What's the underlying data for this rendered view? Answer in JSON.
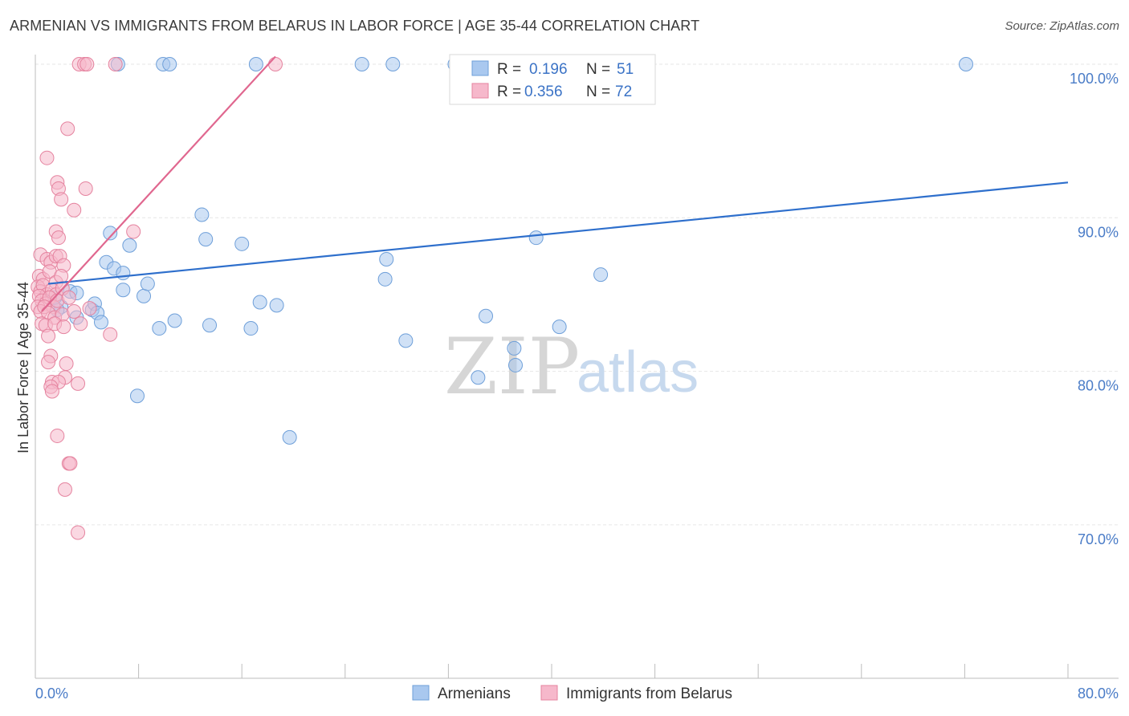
{
  "title": "ARMENIAN VS IMMIGRANTS FROM BELARUS IN LABOR FORCE | AGE 35-44 CORRELATION CHART",
  "source": "Source: ZipAtlas.com",
  "watermark": {
    "zip": "ZIP",
    "atlas": "atlas"
  },
  "chart_data": {
    "type": "scatter",
    "xlabel": "",
    "ylabel": "In Labor Force | Age 35-44",
    "xlim": [
      0,
      80
    ],
    "ylim": [
      60,
      101
    ],
    "x_tick_labels": [
      {
        "value": 0,
        "label": "0.0%"
      },
      {
        "value": 80,
        "label": "80.0%"
      }
    ],
    "y_tick_labels": [
      {
        "value": 100,
        "label": "100.0%"
      },
      {
        "value": 90,
        "label": "90.0%"
      },
      {
        "value": 80,
        "label": "80.0%"
      },
      {
        "value": 70,
        "label": "70.0%"
      }
    ],
    "y_gridlines": [
      100,
      90,
      80,
      70
    ],
    "x_minor_ticks": [
      8,
      16,
      24,
      32,
      40,
      48,
      56,
      64,
      72
    ],
    "legend": [
      {
        "name": "Armenians",
        "r_label": "R =",
        "r": "0.196",
        "n_label": "N =",
        "n": "51",
        "color": "#a9c8ef"
      },
      {
        "name": "Immigrants from Belarus",
        "r_label": "R =",
        "r": "0.356",
        "n_label": "N =",
        "n": "72",
        "color": "#f6b8cb"
      }
    ],
    "series": [
      {
        "name": "Armenians",
        "color": "#a9c8ef",
        "stroke": "#6e9fd9",
        "trend": {
          "x": [
            1.0,
            80.0
          ],
          "y": [
            85.7,
            92.3
          ],
          "color": "#2e6fcc"
        },
        "points": [
          [
            6.4,
            100
          ],
          [
            9.9,
            100
          ],
          [
            10.4,
            100
          ],
          [
            17.1,
            100
          ],
          [
            25.3,
            100
          ],
          [
            27.7,
            100
          ],
          [
            32.5,
            100
          ],
          [
            72.1,
            100
          ],
          [
            2.0,
            84.2
          ],
          [
            1.7,
            84.0
          ],
          [
            4.4,
            84.0
          ],
          [
            4.6,
            84.4
          ],
          [
            3.2,
            83.5
          ],
          [
            4.8,
            83.8
          ],
          [
            2.7,
            85.2
          ],
          [
            3.2,
            85.1
          ],
          [
            1.5,
            84.8
          ],
          [
            5.1,
            83.2
          ],
          [
            5.5,
            87.1
          ],
          [
            5.8,
            89.0
          ],
          [
            6.1,
            86.7
          ],
          [
            6.8,
            86.4
          ],
          [
            6.8,
            85.3
          ],
          [
            7.3,
            88.2
          ],
          [
            8.4,
            84.9
          ],
          [
            8.7,
            85.7
          ],
          [
            9.6,
            82.8
          ],
          [
            10.8,
            83.3
          ],
          [
            12.9,
            90.2
          ],
          [
            13.2,
            88.6
          ],
          [
            13.5,
            83.0
          ],
          [
            16.0,
            88.3
          ],
          [
            16.7,
            82.8
          ],
          [
            17.4,
            84.5
          ],
          [
            18.7,
            84.3
          ],
          [
            7.9,
            78.4
          ],
          [
            19.7,
            75.7
          ],
          [
            27.2,
            87.3
          ],
          [
            27.1,
            86.0
          ],
          [
            28.7,
            82.0
          ],
          [
            34.3,
            79.6
          ],
          [
            34.9,
            83.6
          ],
          [
            37.1,
            81.5
          ],
          [
            37.2,
            80.4
          ],
          [
            38.8,
            88.7
          ],
          [
            40.6,
            82.9
          ],
          [
            43.8,
            86.3
          ]
        ]
      },
      {
        "name": "Immigrants from Belarus",
        "color": "#f6b8cb",
        "stroke": "#e5839f",
        "trend": {
          "x": [
            0.5,
            18.6
          ],
          "y": [
            83.9,
            100.5
          ],
          "color": "#e0678f"
        },
        "points": [
          [
            3.4,
            100
          ],
          [
            3.8,
            100
          ],
          [
            4.0,
            100
          ],
          [
            6.2,
            100
          ],
          [
            18.6,
            100
          ],
          [
            2.5,
            95.8
          ],
          [
            0.9,
            93.9
          ],
          [
            1.7,
            92.3
          ],
          [
            1.8,
            91.9
          ],
          [
            2.0,
            91.2
          ],
          [
            3.9,
            91.9
          ],
          [
            3.0,
            90.5
          ],
          [
            1.6,
            89.1
          ],
          [
            1.8,
            88.7
          ],
          [
            7.6,
            89.1
          ],
          [
            0.4,
            87.6
          ],
          [
            0.9,
            87.3
          ],
          [
            1.2,
            87.1
          ],
          [
            1.6,
            87.5
          ],
          [
            1.9,
            87.5
          ],
          [
            2.2,
            86.9
          ],
          [
            0.3,
            86.2
          ],
          [
            0.6,
            86.0
          ],
          [
            1.1,
            86.5
          ],
          [
            1.6,
            85.8
          ],
          [
            2.0,
            86.2
          ],
          [
            0.2,
            85.5
          ],
          [
            0.4,
            85.2
          ],
          [
            0.6,
            85.6
          ],
          [
            0.9,
            85.0
          ],
          [
            1.3,
            85.3
          ],
          [
            1.6,
            85.0
          ],
          [
            2.1,
            85.4
          ],
          [
            0.3,
            84.9
          ],
          [
            0.5,
            84.6
          ],
          [
            0.8,
            84.4
          ],
          [
            1.1,
            84.8
          ],
          [
            1.4,
            84.2
          ],
          [
            1.7,
            84.6
          ],
          [
            2.6,
            84.8
          ],
          [
            0.2,
            84.2
          ],
          [
            0.4,
            83.9
          ],
          [
            0.7,
            84.2
          ],
          [
            1.0,
            83.8
          ],
          [
            1.5,
            83.5
          ],
          [
            2.1,
            83.7
          ],
          [
            3.0,
            83.9
          ],
          [
            4.2,
            84.1
          ],
          [
            0.5,
            83.1
          ],
          [
            0.8,
            83.0
          ],
          [
            1.5,
            83.1
          ],
          [
            2.2,
            82.9
          ],
          [
            3.5,
            83.1
          ],
          [
            1.0,
            82.3
          ],
          [
            5.8,
            82.4
          ],
          [
            1.2,
            81.0
          ],
          [
            1.0,
            80.6
          ],
          [
            2.4,
            80.5
          ],
          [
            2.3,
            79.6
          ],
          [
            1.3,
            79.3
          ],
          [
            1.8,
            79.3
          ],
          [
            1.2,
            79.0
          ],
          [
            1.3,
            78.7
          ],
          [
            3.3,
            79.2
          ],
          [
            1.7,
            75.8
          ],
          [
            2.6,
            74.0
          ],
          [
            2.7,
            74.0
          ],
          [
            2.3,
            72.3
          ],
          [
            3.3,
            69.5
          ]
        ]
      }
    ]
  }
}
